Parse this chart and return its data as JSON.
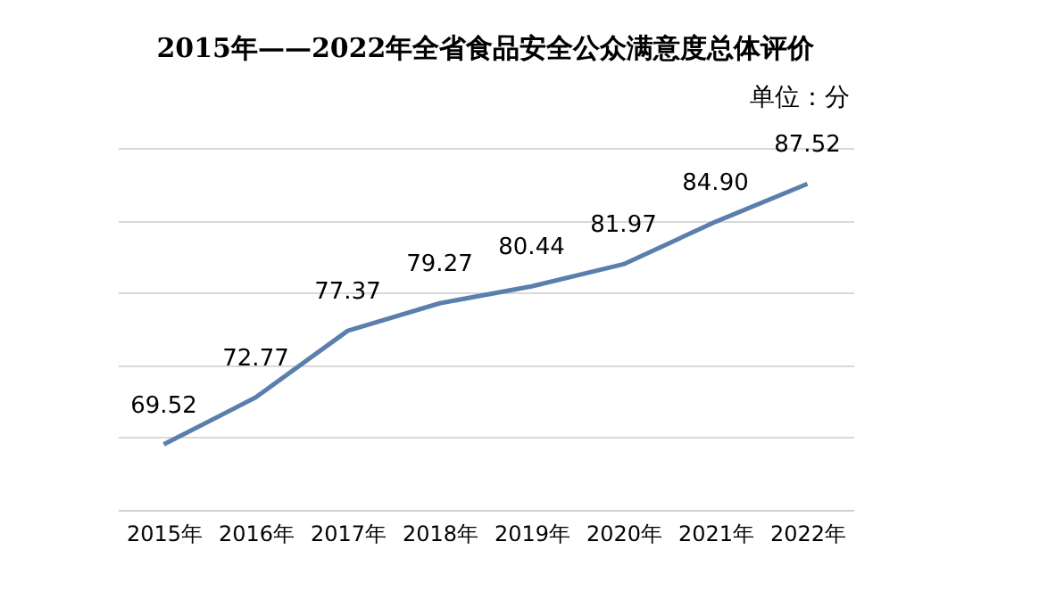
{
  "chart_data": {
    "type": "line",
    "title": "2015年——2022年全省食品安全公众满意度总体评价",
    "annotations": [
      "单位：分"
    ],
    "categories": [
      "2015年",
      "2016年",
      "2017年",
      "2018年",
      "2019年",
      "2020年",
      "2021年",
      "2022年"
    ],
    "series": [
      {
        "color": "#5b7fad",
        "values": [
          69.52,
          72.77,
          77.37,
          79.27,
          80.44,
          81.97,
          84.9,
          87.52
        ],
        "value_labels": [
          "69.52",
          "72.77",
          "77.37",
          "79.27",
          "80.44",
          "81.97",
          "84.90",
          "87.52"
        ]
      }
    ],
    "ylim": [
      65,
      90
    ],
    "yticks": [
      65,
      70,
      75,
      80,
      85,
      90
    ],
    "tick_labels": "x",
    "grid": "y"
  }
}
